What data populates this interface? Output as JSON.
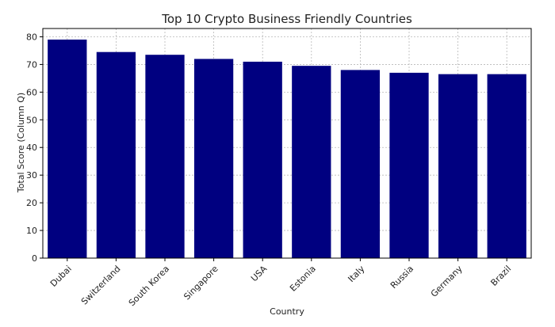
{
  "chart_data": {
    "type": "bar",
    "title": "Top 10 Crypto Business Friendly Countries",
    "xlabel": "Country",
    "ylabel": "Total Score (Column Q)",
    "categories": [
      "Dubai",
      "Switzerland",
      "South Korea",
      "Singapore",
      "USA",
      "Estonia",
      "Italy",
      "Russia",
      "Germany",
      "Brazil"
    ],
    "values": [
      79,
      74.5,
      73.5,
      72,
      71,
      69.5,
      68,
      67,
      66.5,
      66.5
    ],
    "ylim": [
      0,
      83
    ],
    "yticks": [
      0,
      10,
      20,
      30,
      40,
      50,
      60,
      70,
      80
    ],
    "grid": true,
    "bar_color": "#000080"
  }
}
